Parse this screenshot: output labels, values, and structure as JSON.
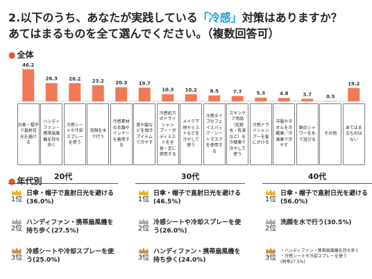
{
  "question": {
    "line1_pre": "2.以下のうち、あなたが実践している",
    "line1_highlight": "「冷感」",
    "line1_post": "対策はありますか？",
    "line2": "あてはまるものを全て選んでください。（複数回答可）"
  },
  "overall_label": "全体",
  "age_label": "年代別",
  "colors": {
    "bar": "#f07a58",
    "accent": "#e8572c",
    "highlight": "#1e9ed6"
  },
  "chart_data": {
    "type": "bar",
    "categories": [
      "日傘・帽子\nで直射日\n光を避け\nる",
      "ハンディ\nファン・\n携帯扇風\n機を持ち\n歩く",
      "冷感シー\nトや冷却\nスプレー\nを使う",
      "洗顔を水\nで行う",
      "冷感素材\nの衣類や\nインナー\nを着用す\nる",
      "首や脇な\nどを保冷\nアイテム\nで冷やす",
      "冷感処方\nのドライ\nシャン\nプー・ボ\nディミス\nトを全\n身・足に\n使用する",
      "メイク下\n地やミス\nトなどを\n冷やして\n使う",
      "冷感タイ\nプのフェ\nイスパッ\nク・シー\nトマスク\nを使用す\nる",
      "スキンケ\nア用品\n（化粧\n水・乳液\nなど）を\n冷蔵庫で\n冷やして\n使う",
      "冷感ドラ\nイシャン\nプーを髪\nにかける",
      "洋服やタ\nオルを冷\n蔵庫／冷\n凍庫で冷\nやす",
      "朝のシャ\nワーを水\nで浴びる",
      "その他",
      "あてはま\nるものは\nない"
    ],
    "values": [
      46.2,
      26.3,
      26.2,
      23.2,
      20.3,
      19.7,
      10.3,
      10.2,
      8.5,
      7.7,
      5.3,
      4.8,
      3.7,
      0.5,
      19.2
    ],
    "value_labels": [
      "46.2",
      "26.3",
      "26.2",
      "23.2",
      "20.3",
      "19.7",
      "10.3",
      "10.2",
      "8.5",
      "7.7",
      "5.3",
      "4.8",
      "3.7",
      "0.5",
      "19.2"
    ],
    "ylim": [
      0,
      50
    ]
  },
  "age_groups": [
    {
      "header": "20代",
      "ranks": [
        {
          "rank": "1位",
          "text": "日傘・帽子で直射日光を避ける(36.0%)"
        },
        {
          "rank": "2位",
          "text": "ハンディファン・携帯扇風機を持ち歩く(27.5%)"
        },
        {
          "rank": "3位",
          "text": "冷感シートや冷却スプレーを使う(25.0%)"
        }
      ]
    },
    {
      "header": "30代",
      "ranks": [
        {
          "rank": "1位",
          "text": "日傘・帽子で直射日光を避ける(46.5%)"
        },
        {
          "rank": "2位",
          "text": "冷感シートや冷却スプレーを使う(26.0%)"
        },
        {
          "rank": "3位",
          "text": "ハンディファン・携帯扇風機を持ち歩く(24.0%)"
        }
      ]
    },
    {
      "header": "40代",
      "ranks": [
        {
          "rank": "1位",
          "text": "日傘・帽子で直射日光を避ける(56.0%)"
        },
        {
          "rank": "2位",
          "text": "洗顔を水で行う(30.5%)"
        },
        {
          "rank": "3位",
          "text": "・ハンディファン・携帯扇風機を持ち歩く\n・冷感シートや冷却スプレーを使う\n(同率27.5%)"
        }
      ]
    }
  ]
}
